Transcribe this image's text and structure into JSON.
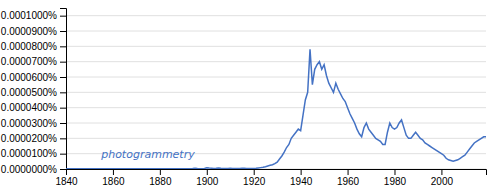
{
  "chart_data": {
    "type": "line",
    "color": "#4472c4",
    "grid": true,
    "annotations": [
      {
        "text": "photogrammetry",
        "x": 1855,
        "y": 9.5e-08
      }
    ],
    "xlim": [
      1840,
      2019
    ],
    "xticks": [
      1840,
      1860,
      1880,
      1900,
      1920,
      1940,
      1960,
      1980,
      2000
    ],
    "ylim": [
      0,
      1.05e-06
    ],
    "yticks": [
      {
        "value": 0,
        "label": "0.0000000%"
      },
      {
        "value": 1e-07,
        "label": "0.0000100%"
      },
      {
        "value": 2e-07,
        "label": "0.0000200%"
      },
      {
        "value": 3e-07,
        "label": "0.0000300%"
      },
      {
        "value": 4e-07,
        "label": "0.0000400%"
      },
      {
        "value": 5e-07,
        "label": "0.0000500%"
      },
      {
        "value": 6e-07,
        "label": "0.0000600%"
      },
      {
        "value": 7e-07,
        "label": "0.0000700%"
      },
      {
        "value": 8e-07,
        "label": "0.0000800%"
      },
      {
        "value": 9e-07,
        "label": "0.0000900%"
      },
      {
        "value": 1e-06,
        "label": "0.0001000%"
      }
    ],
    "x": [
      1840,
      1841,
      1842,
      1843,
      1844,
      1845,
      1846,
      1847,
      1848,
      1849,
      1850,
      1851,
      1852,
      1853,
      1854,
      1855,
      1856,
      1857,
      1858,
      1859,
      1860,
      1861,
      1862,
      1863,
      1864,
      1865,
      1866,
      1867,
      1868,
      1869,
      1870,
      1871,
      1872,
      1873,
      1874,
      1875,
      1876,
      1877,
      1878,
      1879,
      1880,
      1881,
      1882,
      1883,
      1884,
      1885,
      1886,
      1887,
      1888,
      1889,
      1890,
      1891,
      1892,
      1893,
      1894,
      1895,
      1896,
      1897,
      1898,
      1899,
      1900,
      1901,
      1902,
      1903,
      1904,
      1905,
      1906,
      1907,
      1908,
      1909,
      1910,
      1911,
      1912,
      1913,
      1914,
      1915,
      1916,
      1917,
      1918,
      1919,
      1920,
      1921,
      1922,
      1923,
      1924,
      1925,
      1926,
      1927,
      1928,
      1929,
      1930,
      1931,
      1932,
      1933,
      1934,
      1935,
      1936,
      1937,
      1938,
      1939,
      1940,
      1941,
      1942,
      1943,
      1944,
      1945,
      1946,
      1947,
      1948,
      1949,
      1950,
      1951,
      1952,
      1953,
      1954,
      1955,
      1956,
      1957,
      1958,
      1959,
      1960,
      1961,
      1962,
      1963,
      1964,
      1965,
      1966,
      1967,
      1968,
      1969,
      1970,
      1971,
      1972,
      1973,
      1974,
      1975,
      1976,
      1977,
      1978,
      1979,
      1980,
      1981,
      1982,
      1983,
      1984,
      1985,
      1986,
      1987,
      1988,
      1989,
      1990,
      1991,
      1992,
      1993,
      1994,
      1995,
      1996,
      1997,
      1998,
      1999,
      2000,
      2001,
      2002,
      2003,
      2004,
      2005,
      2006,
      2007,
      2008,
      2009,
      2010,
      2011,
      2012,
      2013,
      2014,
      2015,
      2016,
      2017,
      2018,
      2019
    ],
    "values": [
      1e-09,
      1e-09,
      1e-09,
      1e-09,
      1e-09,
      1e-09,
      1e-09,
      1e-09,
      1e-09,
      1e-09,
      1e-09,
      1e-09,
      1e-09,
      1e-09,
      1e-09,
      1e-09,
      1e-09,
      1e-09,
      1e-09,
      1e-09,
      1e-09,
      1e-09,
      1e-09,
      1e-09,
      1e-09,
      1e-09,
      1e-09,
      1e-09,
      1e-09,
      1e-09,
      1e-09,
      1e-09,
      1e-09,
      1e-09,
      1e-09,
      1e-09,
      1e-09,
      1e-09,
      1e-09,
      1e-09,
      1e-09,
      1e-09,
      1e-09,
      1e-09,
      1e-09,
      1e-09,
      1e-09,
      1e-09,
      1e-09,
      1e-09,
      1e-09,
      2e-09,
      2e-09,
      2e-09,
      3e-09,
      5e-09,
      3e-09,
      2e-09,
      2e-09,
      3e-09,
      8e-09,
      6e-09,
      5e-09,
      4e-09,
      5e-09,
      7e-09,
      5e-09,
      4e-09,
      3e-09,
      4e-09,
      5e-09,
      4e-09,
      4e-09,
      3e-09,
      4e-09,
      5e-09,
      5e-09,
      4e-09,
      3e-09,
      3e-09,
      4e-09,
      5e-09,
      7e-09,
      9e-09,
      1.1e-08,
      1.5e-08,
      2e-08,
      2.4e-08,
      2.8e-08,
      3.5e-08,
      4.5e-08,
      6.5e-08,
      8.5e-08,
      1.1e-07,
      1.4e-07,
      1.6e-07,
      2e-07,
      2.2e-07,
      2.4e-07,
      2.6e-07,
      2.5e-07,
      3.5e-07,
      4.5e-07,
      5e-07,
      7.8e-07,
      5.5e-07,
      6.5e-07,
      6.8e-07,
      7e-07,
      6.5e-07,
      6.8e-07,
      6.1e-07,
      5.6e-07,
      5.3e-07,
      5e-07,
      5.6e-07,
      5.2e-07,
      4.9e-07,
      4.6e-07,
      4.4e-07,
      4e-07,
      3.6e-07,
      3.3e-07,
      3e-07,
      2.6e-07,
      2.3e-07,
      2.1e-07,
      2.7e-07,
      3e-07,
      2.6e-07,
      2.4e-07,
      2.2e-07,
      2e-07,
      1.9e-07,
      1.8e-07,
      1.6e-07,
      1.6e-07,
      2.4e-07,
      3e-07,
      2.7e-07,
      2.6e-07,
      2.7e-07,
      3e-07,
      3.2e-07,
      2.7e-07,
      2.2e-07,
      2e-07,
      2e-07,
      2.2e-07,
      2.4e-07,
      2.2e-07,
      2e-07,
      1.9e-07,
      1.7e-07,
      1.6e-07,
      1.5e-07,
      1.4e-07,
      1.3e-07,
      1.2e-07,
      1.1e-07,
      1e-07,
      9e-08,
      7e-08,
      6e-08,
      5.5e-08,
      5e-08,
      5.5e-08,
      6e-08,
      7e-08,
      8e-08,
      9e-08,
      1.1e-07,
      1.3e-07,
      1.5e-07,
      1.7e-07,
      1.8e-07,
      1.9e-07,
      2e-07,
      2.1e-07,
      2.1e-07
    ]
  }
}
